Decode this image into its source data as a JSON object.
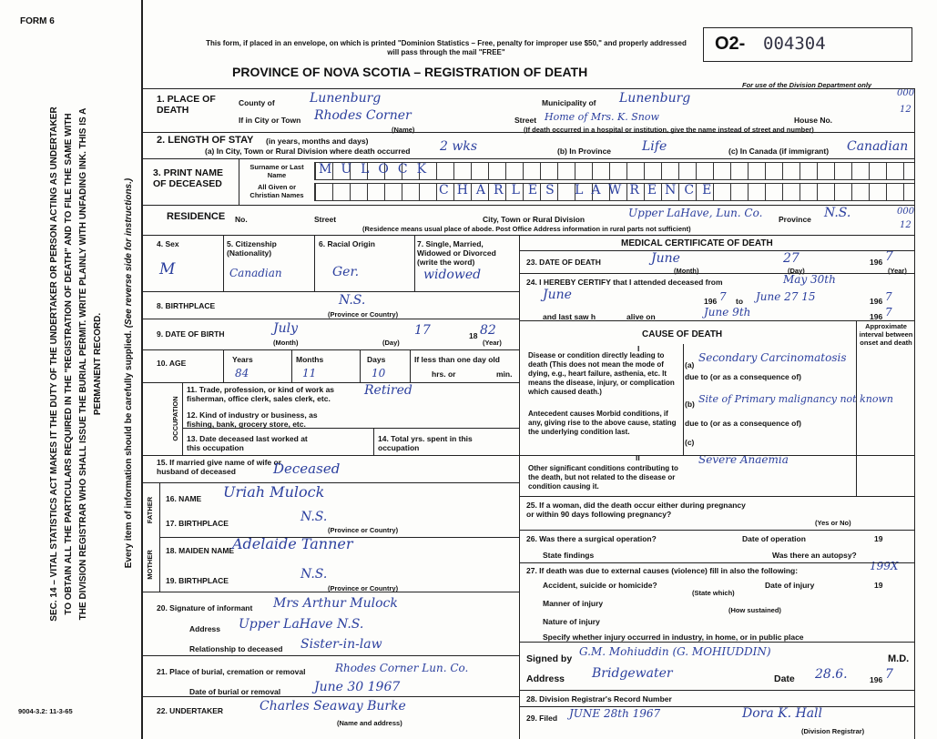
{
  "form_no": "FORM 6",
  "serial": {
    "prefix": "O2-",
    "number": "004304"
  },
  "header": {
    "notice": "This form, if placed in an envelope, on which is printed \"Dominion Statistics – Free, penalty for improper use $50,\" and properly addressed will pass through the mail \"FREE\"",
    "title": "PROVINCE OF NOVA SCOTIA – REGISTRATION OF DEATH",
    "dept_use": "For use of the Division Department only"
  },
  "margin": {
    "statute": "SEC. 14 – VITAL STATISTICS ACT MAKES IT THE DUTY OF THE UNDERTAKER OR PERSON ACTING AS UNDERTAKER TO OBTAIN ALL THE PARTICULARS REQUIRED IN THE \"REGISTRATION OF DEATH\" AND TO FILE THE SAME WITH THE DIVISION REGISTRAR WHO SHALL ISSUE THE BURIAL PERMIT. WRITE PLAINLY WITH UNFADING INK. THIS IS A PERMANENT RECORD.",
    "instruction": "Every item of information should be carefully supplied.",
    "reverse": "(See reverse side for instructions.)",
    "codes": [
      "000",
      "12",
      "000",
      "12"
    ],
    "print_code": "9004-3.2: 11-3-65"
  },
  "place_of_death": {
    "label": "1. PLACE OF DEATH",
    "county_label": "County of",
    "county": "Lunenburg",
    "municipality_label": "Municipality of",
    "municipality": "Lunenburg",
    "city_label": "If in City or Town",
    "city": "Rhodes Corner",
    "name_hint": "(Name)",
    "street_label": "Street",
    "street": "Home of Mrs. K. Snow",
    "house_label": "House No.",
    "note": "(If death occurred in a hospital or institution, give the name instead of street and number)"
  },
  "length_of_stay": {
    "label": "2. LENGTH OF STAY",
    "hint": "(in years, months and days)",
    "a_label": "(a) In City, Town or Rural Division where death occurred",
    "a": "2 wks",
    "b_label": "(b) In Province",
    "b": "Life",
    "c_label": "(c) In Canada (if immigrant)",
    "c": "Canadian"
  },
  "name": {
    "label": "3. PRINT NAME OF DECEASED",
    "surname_label": "Surname or Last Name",
    "surname": "MULOCK",
    "given_label": "All Given or Christian Names",
    "given": "CHARLES LAWRENCE"
  },
  "residence": {
    "label": "RESIDENCE",
    "no_label": "No.",
    "street_label": "Street",
    "city_label": "City, Town or Rural Division",
    "city": "Upper LaHave, Lun. Co.",
    "province_label": "Province",
    "province": "N.S.",
    "note": "(Residence means usual place of abode. Post Office Address information in rural parts not sufficient)"
  },
  "personal": {
    "sex_label": "4. Sex",
    "sex": "M",
    "citizenship_label": "5. Citizenship (Nationality)",
    "citizenship": "Canadian",
    "origin_label": "6. Racial Origin",
    "origin": "Ger.",
    "status_label": "7. Single, Married, Widowed or Divorced (write the word)",
    "status": "widowed"
  },
  "birthplace": {
    "label": "8. BIRTHPLACE",
    "value": "N.S.",
    "hint": "(Province or Country)"
  },
  "date_of_birth": {
    "label": "9. DATE OF BIRTH",
    "month": "July",
    "day": "17",
    "year_prefix": "18",
    "year": "82",
    "month_hint": "(Month)",
    "day_hint": "(Day)",
    "year_hint": "(Year)"
  },
  "age": {
    "label": "10. AGE",
    "years_label": "Years",
    "months_label": "Months",
    "days_label": "Days",
    "years": "84",
    "months": "11",
    "days": "10",
    "under_day": "If less than one day old",
    "hrs": "hrs. or",
    "min": "min."
  },
  "occupation": {
    "label": "OCCUPATION",
    "trade_label": "11. Trade, profession, or kind of work as fisherman, office clerk, sales clerk, etc.",
    "trade": "Retired",
    "industry_label": "12. Kind of industry or business, as fishing, bank, grocery store, etc.",
    "last_worked_label": "13. Date deceased last worked at this occupation",
    "years_label": "14. Total yrs. spent in this occupation"
  },
  "spouse": {
    "label": "15. If married give name of wife or husband of deceased",
    "value": "Deceased"
  },
  "father": {
    "label": "FATHER",
    "name_label": "16. NAME",
    "name": "Uriah Mulock",
    "birthplace_label": "17. BIRTHPLACE",
    "birthplace": "N.S.",
    "hint": "(Province or Country)"
  },
  "mother": {
    "label": "MOTHER",
    "name_label": "18. MAIDEN NAME",
    "name": "Adelaide Tanner",
    "birthplace_label": "19. BIRTHPLACE",
    "birthplace": "N.S.",
    "hint": "(Province or Country)"
  },
  "informant": {
    "label": "20. Signature of informant",
    "signature": "Mrs Arthur Mulock",
    "address_label": "Address",
    "address": "Upper LaHave N.S.",
    "relationship_label": "Relationship to deceased",
    "relationship": "Sister-in-law"
  },
  "burial": {
    "place_label": "21. Place of burial, cremation or removal",
    "place": "Rhodes Corner Lun. Co.",
    "date_label": "Date of burial or removal",
    "date": "June 30 1967"
  },
  "undertaker": {
    "label": "22. UNDERTAKER",
    "value": "Charles Seaway Burke",
    "hint": "(Name and address)"
  },
  "medical": {
    "title": "MEDICAL CERTIFICATE OF DEATH",
    "death_label": "23. DATE OF DEATH",
    "death_month": "June",
    "death_day": "27",
    "year_prefix": "196",
    "death_year": "7",
    "month_hint": "(Month)",
    "day_hint": "(Day)",
    "year_hint": "(Year)",
    "certify_label": "24. I HEREBY CERTIFY that I attended deceased from",
    "from": "May 30th",
    "from_2": "June",
    "to_label": "to",
    "to": "June 27 15",
    "from_year": "7",
    "to_year": "7",
    "last_label": "and last saw h",
    "alive_label": "alive on",
    "alive": "June 9th",
    "alive_year": "7"
  },
  "cause": {
    "title": "CAUSE OF DEATH",
    "interval": "Approximate interval between onset and death",
    "part_1": "I",
    "direct": "Disease or condition directly leading to death (This does not mean the mode of dying, e.g., heart failure, asthenia, etc. It means the disease, injury, or complication which caused death.)",
    "a_label": "(a)",
    "a": "Secondary Carcinomatosis",
    "due_1": "due to (or as a consequence of)",
    "b_label": "(b)",
    "b": "Site of Primary malignancy not known",
    "antecedent": "Antecedent causes Morbid conditions, if any, giving rise to the above cause, stating the underlying condition last.",
    "due_2": "due to (or as a consequence of)",
    "c_label": "(c)",
    "part_2": "II",
    "other": "Other significant conditions contributing to the death, but not related to the disease or condition causing it.",
    "other_value": "Severe Anaemia"
  },
  "pregnancy": {
    "label": "25. If a woman, did the death occur either during pregnancy or within 90 days following pregnancy?",
    "hint": "(Yes or No)"
  },
  "operation": {
    "label": "26. Was there a surgical operation?",
    "date_label": "Date of operation",
    "year_prefix": "19",
    "findings_label": "State findings",
    "autopsy_label": "Was there an autopsy?"
  },
  "external": {
    "label": "27. If death was due to external causes (violence) fill in also the following:",
    "mark": "199X",
    "accident_label": "Accident, suicide or homicide?",
    "state_hint": "(State which)",
    "injury_date_label": "Date of injury",
    "year_prefix": "19",
    "manner_label": "Manner of injury",
    "sustained_hint": "(How sustained)",
    "nature_label": "Nature of injury",
    "place_label": "Specify whether injury occurred in industry, in home, or in public place"
  },
  "certifier": {
    "signed_label": "Signed by",
    "signed": "G.M. Mohiuddin (G. MOHIUDDIN)",
    "md": "M.D.",
    "address_label": "Address",
    "address": "Bridgewater",
    "date_label": "Date",
    "date": "28.6.",
    "year_prefix": "196",
    "year": "7"
  },
  "registration": {
    "record_label": "28. Division Registrar's Record Number",
    "filed_label": "29. Filed",
    "filed": "JUNE 28th 1967",
    "registrar": "Dora K. Hall",
    "registrar_hint": "(Division Registrar)"
  }
}
